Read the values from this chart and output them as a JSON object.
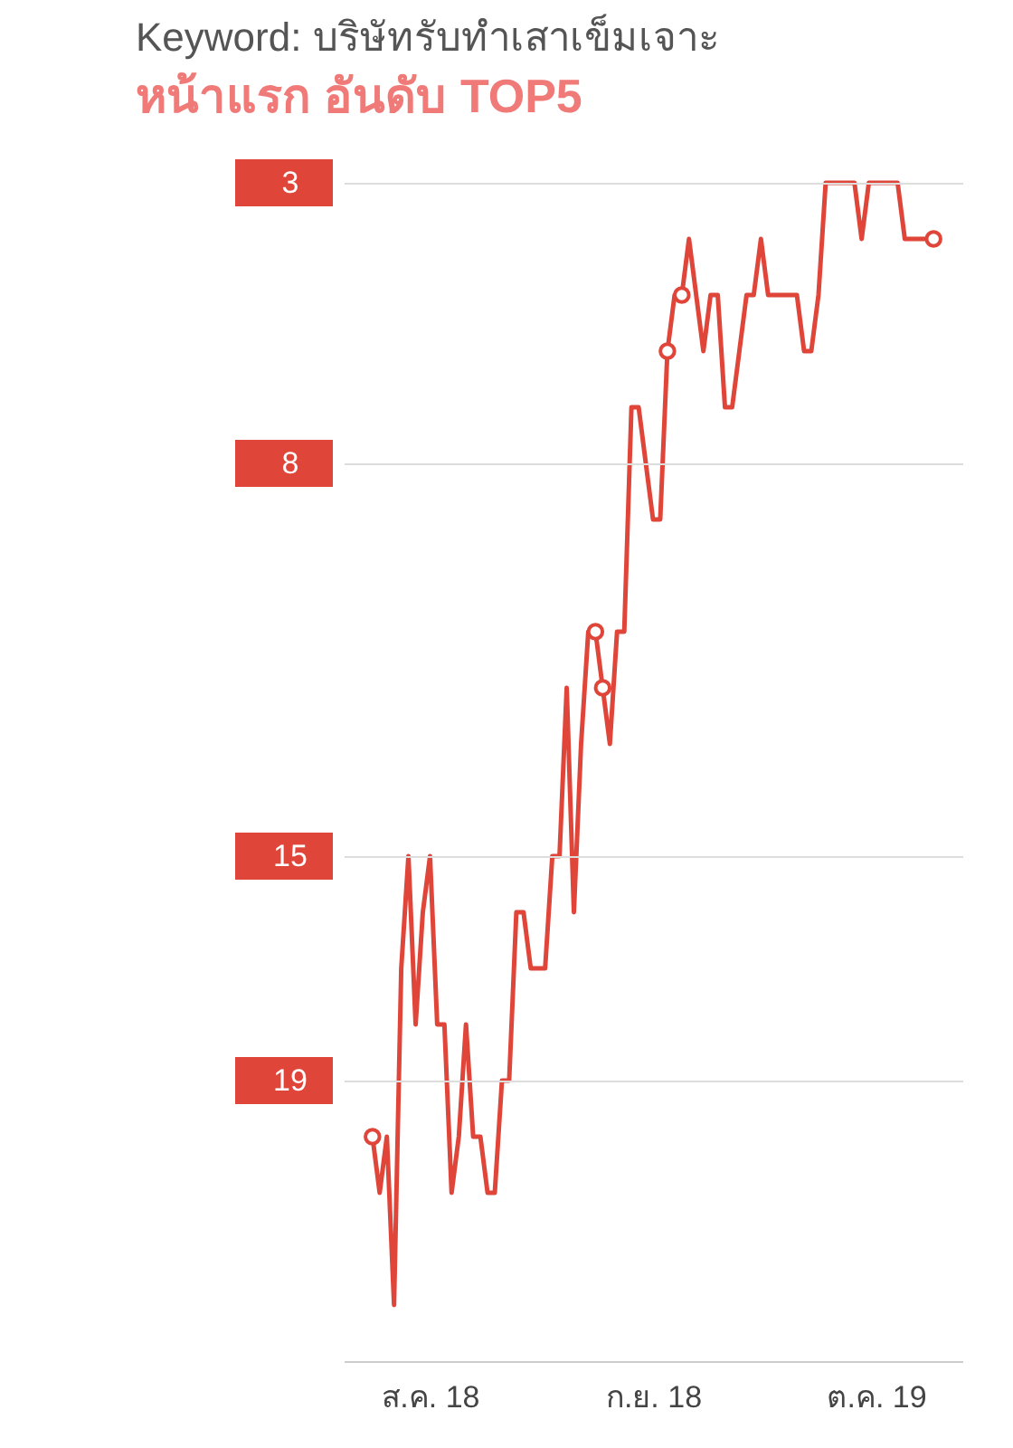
{
  "chart_data": {
    "type": "line",
    "title": "Keyword: บริษัทรับทำเสาเข็มเจาะ",
    "subtitle": "หน้าแรก อันดับ TOP5",
    "xlim": [
      "--08-06",
      "--10-31"
    ],
    "ylim": [
      24,
      3
    ],
    "yticks": [
      3,
      8,
      15,
      19
    ],
    "xticks": [
      {
        "value": "--08-18",
        "label": "ส.ค. 18"
      },
      {
        "value": "--09-18",
        "label": "ก.ย. 18"
      },
      {
        "value": "--10-19",
        "label": "ต.ค. 19"
      }
    ],
    "grid": "y",
    "series": [
      {
        "type": "line",
        "color": "#e0453a",
        "marker": "none",
        "x": [
          "--08-10",
          "--08-11",
          "--08-12",
          "--08-13",
          "--08-14",
          "--08-15",
          "--08-16",
          "--08-17",
          "--08-18",
          "--08-19",
          "--08-20",
          "--08-21",
          "--08-22",
          "--08-23",
          "--08-24",
          "--08-25",
          "--08-26",
          "--08-27",
          "--08-28",
          "--08-29",
          "--08-30",
          "--08-31",
          "--09-01",
          "--09-02",
          "--09-03",
          "--09-04",
          "--09-05",
          "--09-06",
          "--09-07",
          "--09-08",
          "--09-09",
          "--09-10",
          "--09-11",
          "--09-12",
          "--09-13",
          "--09-14",
          "--09-15",
          "--09-16",
          "--09-17",
          "--09-18",
          "--09-19",
          "--09-20",
          "--09-21",
          "--09-22",
          "--09-23",
          "--09-24",
          "--09-25",
          "--09-26",
          "--09-27",
          "--09-28",
          "--09-29",
          "--09-30",
          "--10-01",
          "--10-02",
          "--10-03",
          "--10-04",
          "--10-05",
          "--10-06",
          "--10-07",
          "--10-08",
          "--10-09",
          "--10-10",
          "--10-11",
          "--10-12",
          "--10-13",
          "--10-14",
          "--10-15",
          "--10-16",
          "--10-17",
          "--10-18",
          "--10-19",
          "--10-20",
          "--10-21",
          "--10-22",
          "--10-23",
          "--10-24",
          "--10-25",
          "--10-26",
          "--10-27"
        ],
        "values": [
          20,
          21,
          20,
          23,
          17,
          15,
          18,
          16,
          15,
          18,
          18,
          21,
          20,
          18,
          20,
          20,
          21,
          21,
          19,
          19,
          16,
          16,
          17,
          17,
          17,
          15,
          15,
          12,
          16,
          13,
          11,
          11,
          12,
          13,
          11,
          11,
          7,
          7,
          8,
          9,
          9,
          6,
          5,
          5,
          4,
          5,
          6,
          5,
          5,
          7,
          7,
          6,
          5,
          5,
          4,
          5,
          5,
          5,
          5,
          5,
          6,
          6,
          5,
          3,
          3,
          3,
          3,
          3,
          4,
          3,
          3,
          3,
          3,
          3,
          4,
          4,
          4,
          4,
          4
        ]
      },
      {
        "type": "scatter",
        "color": "#e0453a",
        "marker": "circle",
        "x": [
          "--08-10",
          "--09-10",
          "--09-11",
          "--09-20",
          "--09-22",
          "--10-27"
        ],
        "values": [
          20,
          11,
          12,
          6,
          5,
          4
        ]
      }
    ]
  }
}
